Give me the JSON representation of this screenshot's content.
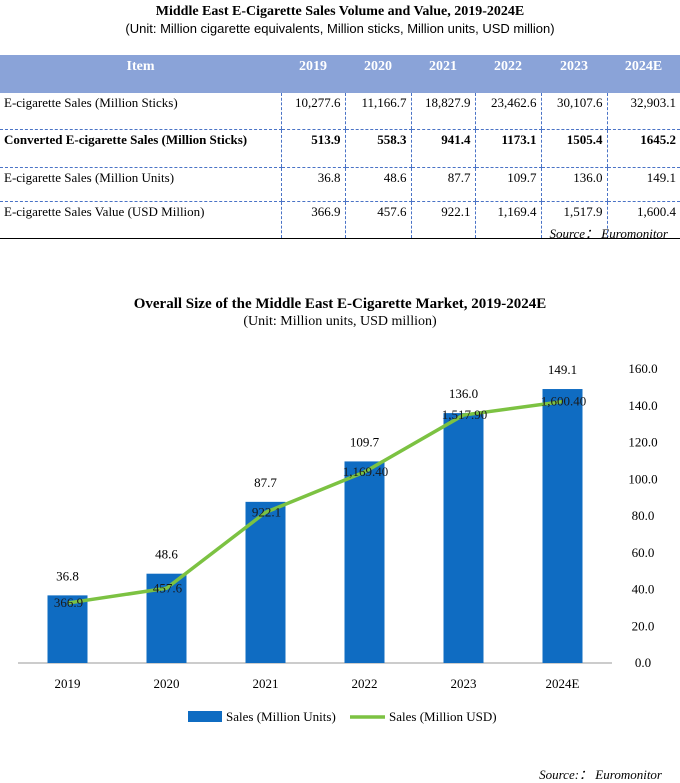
{
  "table": {
    "title": "Middle East E-Cigarette Sales Volume and Value, 2019-2024E",
    "subtitle": "(Unit: Million cigarette equivalents, Million sticks, Million units, USD million)",
    "headers": [
      "Item",
      "2019",
      "2020",
      "2021",
      "2022",
      "2023",
      "2024E"
    ],
    "rows": [
      {
        "label": "E-cigarette Sales (Million Sticks)",
        "values": [
          "10,277.6",
          "11,166.7",
          "18,827.9",
          "23,462.6",
          "30,107.6",
          "32,903.1"
        ]
      },
      {
        "label": "Converted E-cigarette Sales (Million Sticks)",
        "values": [
          "513.9",
          "558.3",
          "941.4",
          "1173.1",
          "1505.4",
          "1645.2"
        ]
      },
      {
        "label": "E-cigarette Sales (Million Units)",
        "values": [
          "36.8",
          "48.6",
          "87.7",
          "109.7",
          "136.0",
          "149.1"
        ]
      },
      {
        "label": "E-cigarette Sales Value (USD Million)",
        "values": [
          "366.9",
          "457.6",
          "922.1",
          "1,169.4",
          "1,517.9",
          "1,600.4"
        ]
      }
    ],
    "source": "Source： Euromonitor"
  },
  "chart_title": "Overall Size of the Middle East E-Cigarette Market, 2019-2024E",
  "chart_subtitle": "(Unit: Million units, USD million)",
  "chart_source": "Source:： Euromonitor",
  "colors": {
    "bar": "#0f6cc2",
    "line": "#7cc242",
    "header_bg": "#8aa3d8",
    "grid": "#4a73c6"
  },
  "chart_data": {
    "type": "bar",
    "categories": [
      "2019",
      "2020",
      "2021",
      "2022",
      "2023",
      "2024E"
    ],
    "series": [
      {
        "name": "Sales (Million Units)",
        "type": "bar",
        "axis": "right",
        "values": [
          36.8,
          48.6,
          87.7,
          109.7,
          136.0,
          149.1
        ],
        "labels": [
          "36.8",
          "48.6",
          "87.7",
          "109.7",
          "136.0",
          "149.1"
        ]
      },
      {
        "name": "Sales (Million USD)",
        "type": "line",
        "axis": "hidden",
        "values": [
          366.9,
          457.6,
          922.1,
          1169.4,
          1517.9,
          1600.4
        ],
        "labels": [
          "366.9",
          "457.6",
          "922.1",
          "1,169.40",
          "1,517.90",
          "1,600.40"
        ]
      }
    ],
    "yaxis_right": {
      "min": 0,
      "max": 160,
      "ticks": [
        "0.0",
        "20.0",
        "40.0",
        "60.0",
        "80.0",
        "100.0",
        "120.0",
        "140.0",
        "160.0"
      ]
    },
    "legend_position": "bottom",
    "grid": false
  }
}
